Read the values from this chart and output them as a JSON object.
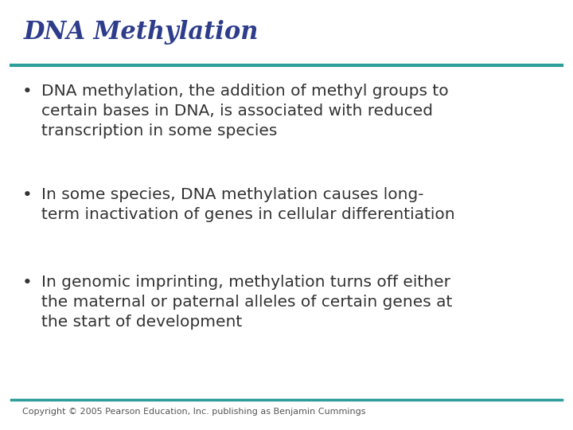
{
  "title": "DNA Methylation",
  "title_color": "#2E3D8B",
  "title_fontsize": 22,
  "title_style": "italic",
  "title_weight": "bold",
  "title_font": "serif",
  "line_color": "#2E9E9A",
  "background_color": "#FFFFFF",
  "bullet_color": "#333333",
  "text_color": "#333333",
  "body_fontsize": 14.5,
  "body_font": "sans-serif",
  "footer_text": "Copyright © 2005 Pearson Education, Inc. publishing as Benjamin Cummings",
  "footer_fontsize": 8,
  "footer_color": "#555555",
  "bullets": [
    "DNA methylation, the addition of methyl groups to\ncertain bases in DNA, is associated with reduced\ntranscription in some species",
    "In some species, DNA methylation causes long-\nterm inactivation of genes in cellular differentiation",
    "In genomic imprinting, methylation turns off either\nthe maternal or paternal alleles of certain genes at\nthe start of development"
  ]
}
